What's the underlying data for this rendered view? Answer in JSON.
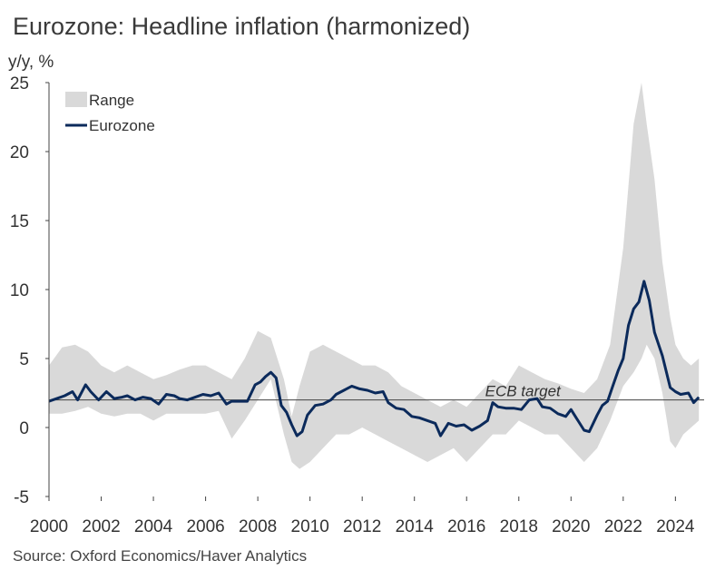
{
  "title": "Eurozone: Headline inflation (harmonized)",
  "source": "Source: Oxford Economics/Haver Analytics",
  "chart_data": {
    "type": "area",
    "ylabel": "y/y, %",
    "xlabel": "",
    "ylim": [
      -5,
      25
    ],
    "xlim": [
      2000,
      2025.1
    ],
    "yticks": [
      25,
      20,
      15,
      10,
      5,
      0,
      -5
    ],
    "xticks": [
      2000,
      2002,
      2004,
      2006,
      2008,
      2010,
      2012,
      2014,
      2016,
      2018,
      2020,
      2022,
      2024
    ],
    "legend": {
      "placement": "top-left",
      "entries": [
        "Range",
        "Eurozone"
      ]
    },
    "colors": {
      "range": "#d9d9d9",
      "eurozone": "#0b2a5b",
      "target": "#404040"
    },
    "annotation": {
      "text": "ECB target",
      "value": 2
    },
    "series": [
      {
        "name": "Range",
        "type": "band",
        "x": [
          2000.0,
          2000.5,
          2001.0,
          2001.5,
          2002.0,
          2002.5,
          2003.0,
          2003.5,
          2004.0,
          2004.5,
          2005.0,
          2005.5,
          2006.0,
          2006.5,
          2007.0,
          2007.5,
          2008.0,
          2008.5,
          2009.0,
          2009.3,
          2009.6,
          2010.0,
          2010.5,
          2011.0,
          2011.5,
          2012.0,
          2012.5,
          2013.0,
          2013.5,
          2014.0,
          2014.5,
          2015.0,
          2015.5,
          2016.0,
          2016.5,
          2017.0,
          2017.5,
          2018.0,
          2018.5,
          2019.0,
          2019.5,
          2020.0,
          2020.5,
          2021.0,
          2021.5,
          2022.0,
          2022.4,
          2022.7,
          2022.9,
          2023.2,
          2023.5,
          2023.8,
          2024.0,
          2024.3,
          2024.6,
          2024.9
        ],
        "upper": [
          4.5,
          5.8,
          6.0,
          5.5,
          4.5,
          4.0,
          4.5,
          4.0,
          3.5,
          3.8,
          4.2,
          4.5,
          4.5,
          4.0,
          3.5,
          5.0,
          7.0,
          6.5,
          3.5,
          0.8,
          3.0,
          5.5,
          6.0,
          5.5,
          5.0,
          4.5,
          4.5,
          4.0,
          3.0,
          2.5,
          2.0,
          1.5,
          2.0,
          1.5,
          2.5,
          3.5,
          3.0,
          4.5,
          4.0,
          3.5,
          3.2,
          2.8,
          2.5,
          3.5,
          6.0,
          13.0,
          22.0,
          25.0,
          22.0,
          18.0,
          12.0,
          8.0,
          6.0,
          5.0,
          4.5,
          5.0
        ],
        "lower": [
          1.0,
          1.0,
          1.2,
          1.5,
          1.0,
          0.8,
          1.0,
          1.0,
          0.5,
          1.0,
          1.0,
          1.0,
          1.0,
          1.2,
          -0.8,
          0.5,
          2.0,
          3.5,
          -0.5,
          -2.5,
          -3.0,
          -2.5,
          -1.5,
          -0.5,
          -0.5,
          0.0,
          -0.5,
          -1.0,
          -1.5,
          -2.0,
          -2.5,
          -2.0,
          -1.5,
          -2.5,
          -1.5,
          -0.5,
          -0.5,
          0.5,
          0.0,
          -0.5,
          -0.5,
          -1.5,
          -2.5,
          -1.5,
          0.5,
          3.0,
          4.0,
          5.0,
          6.0,
          5.0,
          2.5,
          -1.0,
          -1.5,
          -0.5,
          0.0,
          0.5
        ]
      },
      {
        "name": "Eurozone",
        "type": "line",
        "x": [
          2000.0,
          2000.3,
          2000.6,
          2000.9,
          2001.1,
          2001.4,
          2001.6,
          2001.9,
          2002.2,
          2002.5,
          2002.8,
          2003.0,
          2003.3,
          2003.6,
          2003.9,
          2004.2,
          2004.5,
          2004.8,
          2005.0,
          2005.3,
          2005.6,
          2005.9,
          2006.2,
          2006.5,
          2006.8,
          2007.0,
          2007.3,
          2007.6,
          2007.9,
          2008.1,
          2008.3,
          2008.5,
          2008.7,
          2008.9,
          2009.1,
          2009.3,
          2009.5,
          2009.7,
          2009.9,
          2010.2,
          2010.5,
          2010.8,
          2011.0,
          2011.3,
          2011.6,
          2011.9,
          2012.2,
          2012.5,
          2012.8,
          2013.0,
          2013.3,
          2013.6,
          2013.9,
          2014.2,
          2014.5,
          2014.8,
          2015.0,
          2015.3,
          2015.6,
          2015.9,
          2016.2,
          2016.5,
          2016.8,
          2017.0,
          2017.2,
          2017.5,
          2017.8,
          2018.1,
          2018.4,
          2018.7,
          2018.9,
          2019.2,
          2019.5,
          2019.8,
          2020.0,
          2020.2,
          2020.5,
          2020.7,
          2021.0,
          2021.2,
          2021.4,
          2021.6,
          2021.8,
          2022.0,
          2022.2,
          2022.4,
          2022.6,
          2022.8,
          2023.0,
          2023.2,
          2023.5,
          2023.8,
          2024.0,
          2024.2,
          2024.5,
          2024.7,
          2024.9
        ],
        "y": [
          1.9,
          2.1,
          2.3,
          2.6,
          2.0,
          3.1,
          2.6,
          2.0,
          2.6,
          2.1,
          2.2,
          2.3,
          2.0,
          2.2,
          2.1,
          1.7,
          2.4,
          2.3,
          2.1,
          2.0,
          2.2,
          2.4,
          2.3,
          2.5,
          1.7,
          1.9,
          1.9,
          1.9,
          3.1,
          3.3,
          3.7,
          4.0,
          3.6,
          1.6,
          1.1,
          0.2,
          -0.6,
          -0.3,
          0.9,
          1.6,
          1.7,
          2.0,
          2.4,
          2.7,
          3.0,
          2.8,
          2.7,
          2.5,
          2.6,
          1.8,
          1.4,
          1.3,
          0.8,
          0.7,
          0.5,
          0.3,
          -0.6,
          0.3,
          0.1,
          0.2,
          -0.2,
          0.1,
          0.5,
          1.8,
          1.5,
          1.4,
          1.4,
          1.3,
          2.0,
          2.1,
          1.5,
          1.4,
          1.0,
          0.8,
          1.3,
          0.7,
          -0.2,
          -0.3,
          0.9,
          1.6,
          1.9,
          3.0,
          4.1,
          5.0,
          7.4,
          8.6,
          9.1,
          10.6,
          9.2,
          6.9,
          5.2,
          2.9,
          2.6,
          2.4,
          2.5,
          1.8,
          2.2
        ]
      }
    ]
  }
}
